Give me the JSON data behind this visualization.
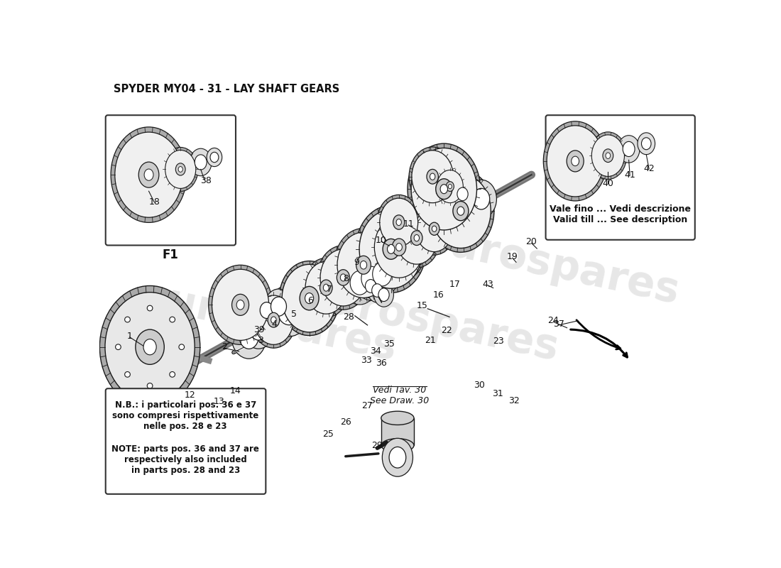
{
  "title": "SPYDER MY04 - 31 - LAY SHAFT GEARS",
  "bg_color": "#ffffff",
  "line_color": "#1a1a1a",
  "gear_fill": "#f0f0f0",
  "gear_edge": "#1a1a1a",
  "watermark_text": "eurospares",
  "note_it": "N.B.: i particolari pos. 36 e 37\nsono compresi rispettivamente\nnelle pos. 28 e 23",
  "note_en": "NOTE: parts pos. 36 and 37 are\nrespectively also included\nin parts pos. 28 and 23",
  "vf_text": "Vale fino ... Vedi descrizione\nValid till ... See description",
  "vedi_tav": "Vedi Tav. 30\nSee Draw. 30"
}
